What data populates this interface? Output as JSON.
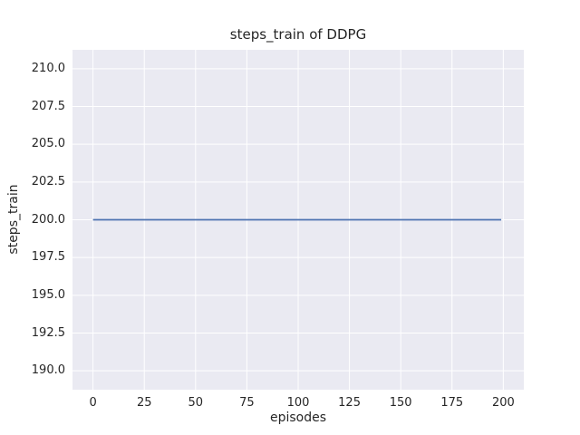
{
  "chart_data": {
    "type": "line",
    "title": "steps_train of DDPG",
    "xlabel": "episodes",
    "ylabel": "steps_train",
    "xlim": [
      -10,
      210
    ],
    "ylim": [
      188.75,
      211.25
    ],
    "x_ticks": [
      0,
      25,
      50,
      75,
      100,
      125,
      150,
      175,
      200
    ],
    "x_tick_labels": [
      "0",
      "25",
      "50",
      "75",
      "100",
      "125",
      "150",
      "175",
      "200"
    ],
    "y_ticks": [
      190.0,
      192.5,
      195.0,
      197.5,
      200.0,
      202.5,
      205.0,
      207.5,
      210.0
    ],
    "y_tick_labels": [
      "190.0",
      "192.5",
      "195.0",
      "197.5",
      "200.0",
      "202.5",
      "205.0",
      "207.5",
      "210.0"
    ],
    "grid": true,
    "legend_position": "none",
    "plot_background_color": "#eaeaf2",
    "grid_color": "#ffffff",
    "text_color": "#262626",
    "series": [
      {
        "name": "steps_train",
        "color": "#4c72b0",
        "x": [
          0,
          199
        ],
        "y": [
          200,
          200
        ],
        "note": "constant value 200 across all episodes 0-199"
      }
    ]
  }
}
